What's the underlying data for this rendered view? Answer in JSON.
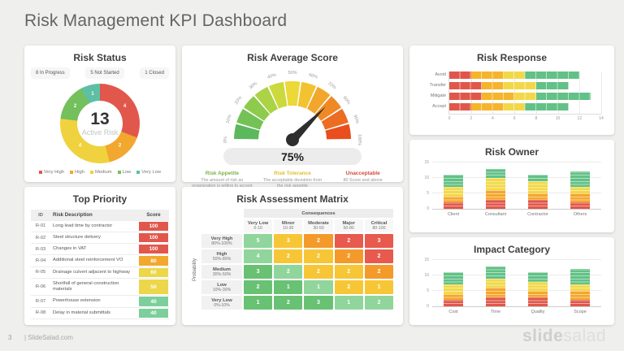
{
  "page": {
    "title": "Risk Management KPI Dashboard",
    "page_number": "3",
    "footer_link": "| SlideSalad.com",
    "watermark": {
      "bold": "slide",
      "light": "salad"
    }
  },
  "chart_data": [
    {
      "id": "risk-status-donut",
      "type": "pie",
      "title": "Risk Status",
      "badges": [
        "8 In Progress",
        "5 Not Started",
        "1 Closed"
      ],
      "center_value": "13",
      "center_label": "Active Risk",
      "labels": [
        "Very High",
        "High",
        "Medium",
        "Low",
        "Very Low"
      ],
      "values": [
        4,
        2,
        4,
        2,
        1
      ],
      "colors": [
        "#e2574c",
        "#f2a72e",
        "#efd23e",
        "#74c05c",
        "#5dbfa4"
      ],
      "total": 13
    },
    {
      "id": "risk-average-gauge",
      "type": "gauge",
      "title": "Risk Average Score",
      "value_percent": 75,
      "value_label": "75%",
      "ticks": [
        "0%",
        "10%",
        "20%",
        "30%",
        "40%",
        "50%",
        "60%",
        "70%",
        "80%",
        "90%",
        "100%"
      ],
      "segment_colors": [
        "#5cb85c",
        "#74c255",
        "#8ecb4d",
        "#abd345",
        "#ccd93d",
        "#ecd836",
        "#f3c231",
        "#f2a62b",
        "#ef8926",
        "#ec6c21",
        "#e84e1e"
      ],
      "needle_color": "#2e2e2e",
      "notes": [
        {
          "label": "Risk Appetite",
          "color": "#7cb342",
          "text": "The amount of risk an organization is willing to accept"
        },
        {
          "label": "Risk Tolerance",
          "color": "#e0c02a",
          "text": "The acceptable deviation from the risk appetite"
        },
        {
          "label": "Unacceptable",
          "color": "#d8493c",
          "text": "80 Score and above"
        }
      ]
    },
    {
      "id": "risk-response",
      "type": "bar",
      "orientation": "horizontal",
      "stacked": true,
      "title": "Risk Response",
      "categories": [
        "Avoid",
        "Transfer",
        "Mitigate",
        "Accept"
      ],
      "series": [
        {
          "name": "Very High",
          "color": "#e0574a",
          "values": [
            2,
            3,
            3,
            2
          ]
        },
        {
          "name": "High",
          "color": "#f5b42c",
          "values": [
            3,
            2,
            3,
            3
          ]
        },
        {
          "name": "Medium",
          "color": "#f2d849",
          "values": [
            2,
            3,
            2,
            2
          ]
        },
        {
          "name": "Low",
          "color": "#62c186",
          "values": [
            5,
            3,
            5,
            4
          ]
        }
      ],
      "xlim": [
        0,
        14
      ],
      "xticks": [
        0,
        2,
        4,
        6,
        8,
        10,
        12,
        14
      ]
    },
    {
      "id": "risk-owner",
      "type": "bar",
      "orientation": "vertical",
      "stacked": true,
      "title": "Risk Owner",
      "categories": [
        "Client",
        "Consultant",
        "Contractor",
        "Others"
      ],
      "series": [
        {
          "name": "Very High",
          "color": "#e0574a",
          "values": [
            2,
            3,
            3,
            2
          ]
        },
        {
          "name": "High",
          "color": "#f5a62c",
          "values": [
            2,
            3,
            2,
            3
          ]
        },
        {
          "name": "Medium",
          "color": "#f2d849",
          "values": [
            3,
            4,
            4,
            2
          ]
        },
        {
          "name": "Low",
          "color": "#62c186",
          "values": [
            4,
            3,
            2,
            5
          ]
        }
      ],
      "ylim": [
        0,
        15
      ],
      "yticks": [
        0,
        5,
        10,
        15
      ]
    },
    {
      "id": "impact-category",
      "type": "bar",
      "orientation": "vertical",
      "stacked": true,
      "title": "Impact Category",
      "categories": [
        "Cost",
        "Time",
        "Quality",
        "Scope"
      ],
      "series": [
        {
          "name": "Very High",
          "color": "#e0574a",
          "values": [
            2,
            3,
            3,
            2
          ]
        },
        {
          "name": "High",
          "color": "#f5a62c",
          "values": [
            2,
            3,
            2,
            3
          ]
        },
        {
          "name": "Medium",
          "color": "#f2d849",
          "values": [
            3,
            3,
            3,
            2
          ]
        },
        {
          "name": "Low",
          "color": "#62c186",
          "values": [
            4,
            4,
            3,
            5
          ]
        }
      ],
      "ylim": [
        0,
        15
      ],
      "yticks": [
        0,
        5,
        10,
        15
      ]
    },
    {
      "id": "top-priority",
      "type": "table",
      "title": "Top Priority",
      "columns": [
        "ID",
        "Risk Description",
        "Score"
      ],
      "rows": [
        {
          "id": "R-01",
          "description": "Long lead time by contractor",
          "score": "100",
          "color": "#e2574c"
        },
        {
          "id": "R-02",
          "description": "Steel structure delivery",
          "score": "100",
          "color": "#e2574c"
        },
        {
          "id": "R-03",
          "description": "Changes in VAT",
          "score": "100",
          "color": "#e2574c"
        },
        {
          "id": "R-04",
          "description": "Additional steel reinforcement VO",
          "score": "80",
          "color": "#f2a82c"
        },
        {
          "id": "R-05",
          "description": "Drainage culvert adjacent to highway",
          "score": "60",
          "color": "#ecd64a"
        },
        {
          "id": "R-06",
          "description": "Shortfall of general construction materials",
          "score": "50",
          "color": "#ecd64a"
        },
        {
          "id": "R-07",
          "description": "Powerhouse extension",
          "score": "40",
          "color": "#7ccf9b"
        },
        {
          "id": "R-08",
          "description": "Delay in material submittals",
          "score": "40",
          "color": "#7ccf9b"
        }
      ]
    },
    {
      "id": "risk-matrix",
      "type": "heatmap",
      "title": "Risk Assessment Matrix",
      "x_axis_label": "Consequences",
      "y_axis_label": "Probability",
      "columns": [
        {
          "name": "Very Low",
          "range": "0-10"
        },
        {
          "name": "Minor",
          "range": "10-30"
        },
        {
          "name": "Moderate",
          "range": "30-50"
        },
        {
          "name": "Major",
          "range": "50-80"
        },
        {
          "name": "Critical",
          "range": "80-100"
        }
      ],
      "rows": [
        {
          "name": "Very High",
          "range": "80%-100%"
        },
        {
          "name": "High",
          "range": "50%-80%"
        },
        {
          "name": "Medium",
          "range": "30%-50%"
        },
        {
          "name": "Low",
          "range": "10%-30%"
        },
        {
          "name": "Very Low",
          "range": "0%-10%"
        }
      ],
      "palette": {
        "gm": "#69c173",
        "gl": "#90d59b",
        "y": "#f7c636",
        "o": "#f49a2a",
        "r": "#e75a4d"
      },
      "cells": [
        [
          {
            "v": 5,
            "c": "gl"
          },
          {
            "v": 3,
            "c": "y"
          },
          {
            "v": 2,
            "c": "o"
          },
          {
            "v": 2,
            "c": "r"
          },
          {
            "v": 3,
            "c": "r"
          }
        ],
        [
          {
            "v": 4,
            "c": "gl"
          },
          {
            "v": 2,
            "c": "y"
          },
          {
            "v": 2,
            "c": "y"
          },
          {
            "v": 2,
            "c": "o"
          },
          {
            "v": 2,
            "c": "r"
          }
        ],
        [
          {
            "v": 3,
            "c": "gm"
          },
          {
            "v": 2,
            "c": "gl"
          },
          {
            "v": 2,
            "c": "y"
          },
          {
            "v": 2,
            "c": "y"
          },
          {
            "v": 2,
            "c": "o"
          }
        ],
        [
          {
            "v": 2,
            "c": "gm"
          },
          {
            "v": 1,
            "c": "gm"
          },
          {
            "v": 1,
            "c": "gl"
          },
          {
            "v": 2,
            "c": "y"
          },
          {
            "v": 1,
            "c": "y"
          }
        ],
        [
          {
            "v": 1,
            "c": "gm"
          },
          {
            "v": 2,
            "c": "gm"
          },
          {
            "v": 3,
            "c": "gm"
          },
          {
            "v": 1,
            "c": "gl"
          },
          {
            "v": 2,
            "c": "gl"
          }
        ]
      ]
    }
  ]
}
